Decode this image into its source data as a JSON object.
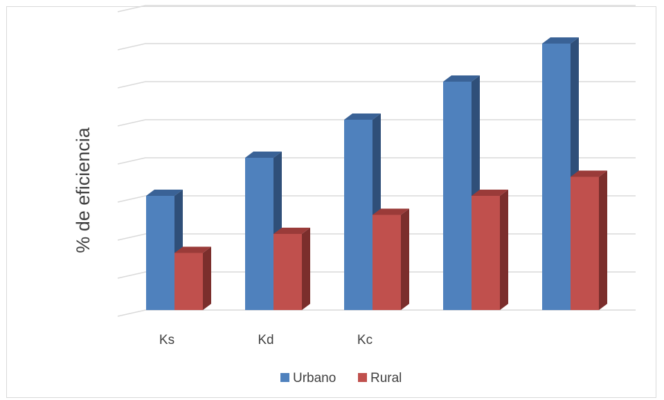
{
  "chart_data": {
    "type": "bar",
    "title": "",
    "xlabel": "",
    "ylabel": "% de eficiencia",
    "categories": [
      "Ks",
      "Kd",
      "Kc",
      "",
      ""
    ],
    "series": [
      {
        "name": "Urbano",
        "values": [
          3,
          4,
          5,
          6,
          7
        ],
        "color": "#4f81bd",
        "side": "#2f4f79",
        "top": "#3a6296"
      },
      {
        "name": "Rural",
        "values": [
          1.5,
          2,
          2.5,
          3,
          3.5
        ],
        "color": "#c0504d",
        "side": "#7b2e2c",
        "top": "#9a3b39"
      }
    ],
    "ylim": [
      0,
      7
    ],
    "grid": true,
    "style": "3d-clustered-column",
    "legend_position": "bottom"
  }
}
